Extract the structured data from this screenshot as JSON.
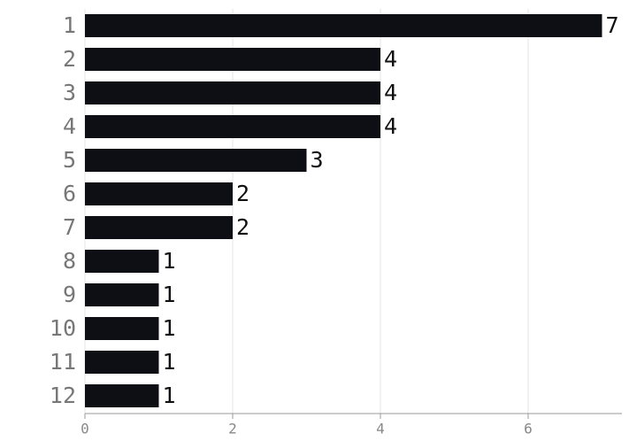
{
  "chart_data": {
    "type": "bar",
    "orientation": "horizontal",
    "categories": [
      "1",
      "2",
      "3",
      "4",
      "5",
      "6",
      "7",
      "8",
      "9",
      "10",
      "11",
      "12"
    ],
    "values": [
      7,
      4,
      4,
      4,
      3,
      2,
      2,
      1,
      1,
      1,
      1,
      1
    ],
    "color": "#0d0f14",
    "xlim": [
      0,
      7.27
    ],
    "xticks": [
      0,
      2,
      4,
      6
    ],
    "grid": true
  }
}
